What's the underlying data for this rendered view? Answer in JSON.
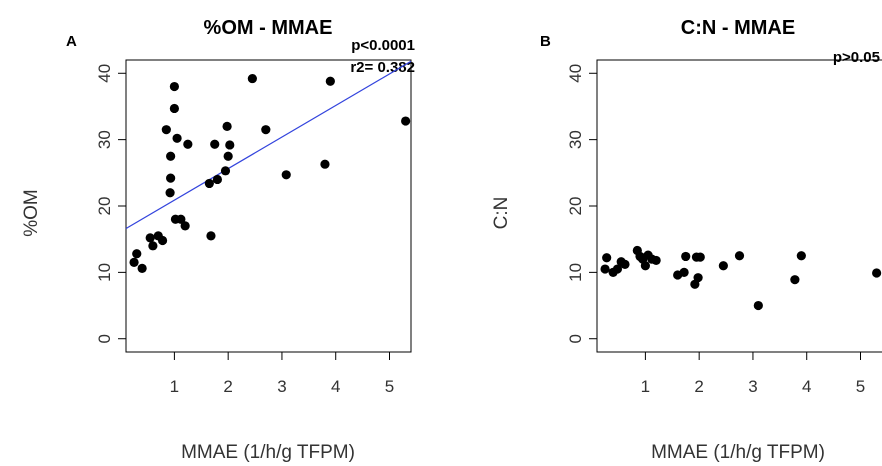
{
  "chart_data": [
    {
      "type": "scatter",
      "panel_label": "A",
      "title": "%OM  - MMAE",
      "xlabel": "MMAE (1/h/g TFPM)",
      "ylabel": "%OM",
      "xlim": [
        0.1,
        5.4
      ],
      "ylim": [
        -2,
        42
      ],
      "xticks": [
        "1",
        "2",
        "3",
        "4",
        "5"
      ],
      "yticks": [
        "0",
        "10",
        "20",
        "30",
        "40"
      ],
      "annotations": [
        "p<0.0001",
        "r2= 0.382"
      ],
      "point_color": "#000000",
      "regression": {
        "color": "#3344dd",
        "x": [
          0.1,
          5.4
        ],
        "y": [
          16.6,
          41.8
        ]
      },
      "points": [
        {
          "x": 0.25,
          "y": 11.5
        },
        {
          "x": 0.3,
          "y": 12.8
        },
        {
          "x": 0.4,
          "y": 10.6
        },
        {
          "x": 0.55,
          "y": 15.2
        },
        {
          "x": 0.6,
          "y": 14.0
        },
        {
          "x": 0.7,
          "y": 15.5
        },
        {
          "x": 0.78,
          "y": 14.8
        },
        {
          "x": 0.85,
          "y": 31.5
        },
        {
          "x": 0.92,
          "y": 22.0
        },
        {
          "x": 0.93,
          "y": 27.5
        },
        {
          "x": 0.93,
          "y": 24.2
        },
        {
          "x": 1.0,
          "y": 38.0
        },
        {
          "x": 1.0,
          "y": 34.7
        },
        {
          "x": 1.02,
          "y": 18.0
        },
        {
          "x": 1.05,
          "y": 30.2
        },
        {
          "x": 1.12,
          "y": 18.0
        },
        {
          "x": 1.2,
          "y": 17.0
        },
        {
          "x": 1.25,
          "y": 29.3
        },
        {
          "x": 1.65,
          "y": 23.4
        },
        {
          "x": 1.68,
          "y": 15.5
        },
        {
          "x": 1.75,
          "y": 29.3
        },
        {
          "x": 1.8,
          "y": 24.0
        },
        {
          "x": 1.95,
          "y": 25.3
        },
        {
          "x": 1.98,
          "y": 32.0
        },
        {
          "x": 2.0,
          "y": 27.5
        },
        {
          "x": 2.03,
          "y": 29.2
        },
        {
          "x": 2.45,
          "y": 39.2
        },
        {
          "x": 2.7,
          "y": 31.5
        },
        {
          "x": 3.08,
          "y": 24.7
        },
        {
          "x": 3.8,
          "y": 26.3
        },
        {
          "x": 3.9,
          "y": 38.8
        },
        {
          "x": 5.3,
          "y": 32.8
        }
      ]
    },
    {
      "type": "scatter",
      "panel_label": "B",
      "title": "C:N - MMAE",
      "xlabel": "MMAE (1/h/g TFPM)",
      "ylabel": "C:N",
      "xlim": [
        0.1,
        5.4
      ],
      "ylim": [
        -2,
        42
      ],
      "xticks": [
        "1",
        "2",
        "3",
        "4",
        "5"
      ],
      "yticks": [
        "0",
        "10",
        "20",
        "30",
        "40"
      ],
      "annotations": [
        "p>0.05"
      ],
      "point_color": "#000000",
      "points": [
        {
          "x": 0.25,
          "y": 10.5
        },
        {
          "x": 0.28,
          "y": 12.2
        },
        {
          "x": 0.4,
          "y": 10.0
        },
        {
          "x": 0.48,
          "y": 10.5
        },
        {
          "x": 0.55,
          "y": 11.6
        },
        {
          "x": 0.62,
          "y": 11.2
        },
        {
          "x": 0.85,
          "y": 13.3
        },
        {
          "x": 0.9,
          "y": 12.4
        },
        {
          "x": 0.95,
          "y": 12.0
        },
        {
          "x": 1.0,
          "y": 11.0
        },
        {
          "x": 1.05,
          "y": 12.6
        },
        {
          "x": 1.12,
          "y": 12.0
        },
        {
          "x": 1.2,
          "y": 11.8
        },
        {
          "x": 1.6,
          "y": 9.6
        },
        {
          "x": 1.72,
          "y": 10.0
        },
        {
          "x": 1.75,
          "y": 12.4
        },
        {
          "x": 1.92,
          "y": 8.2
        },
        {
          "x": 1.95,
          "y": 12.3
        },
        {
          "x": 1.98,
          "y": 9.2
        },
        {
          "x": 2.02,
          "y": 12.3
        },
        {
          "x": 2.45,
          "y": 11.0
        },
        {
          "x": 2.75,
          "y": 12.5
        },
        {
          "x": 3.1,
          "y": 5.0
        },
        {
          "x": 3.78,
          "y": 8.9
        },
        {
          "x": 3.9,
          "y": 12.5
        },
        {
          "x": 5.3,
          "y": 9.9
        }
      ]
    }
  ]
}
